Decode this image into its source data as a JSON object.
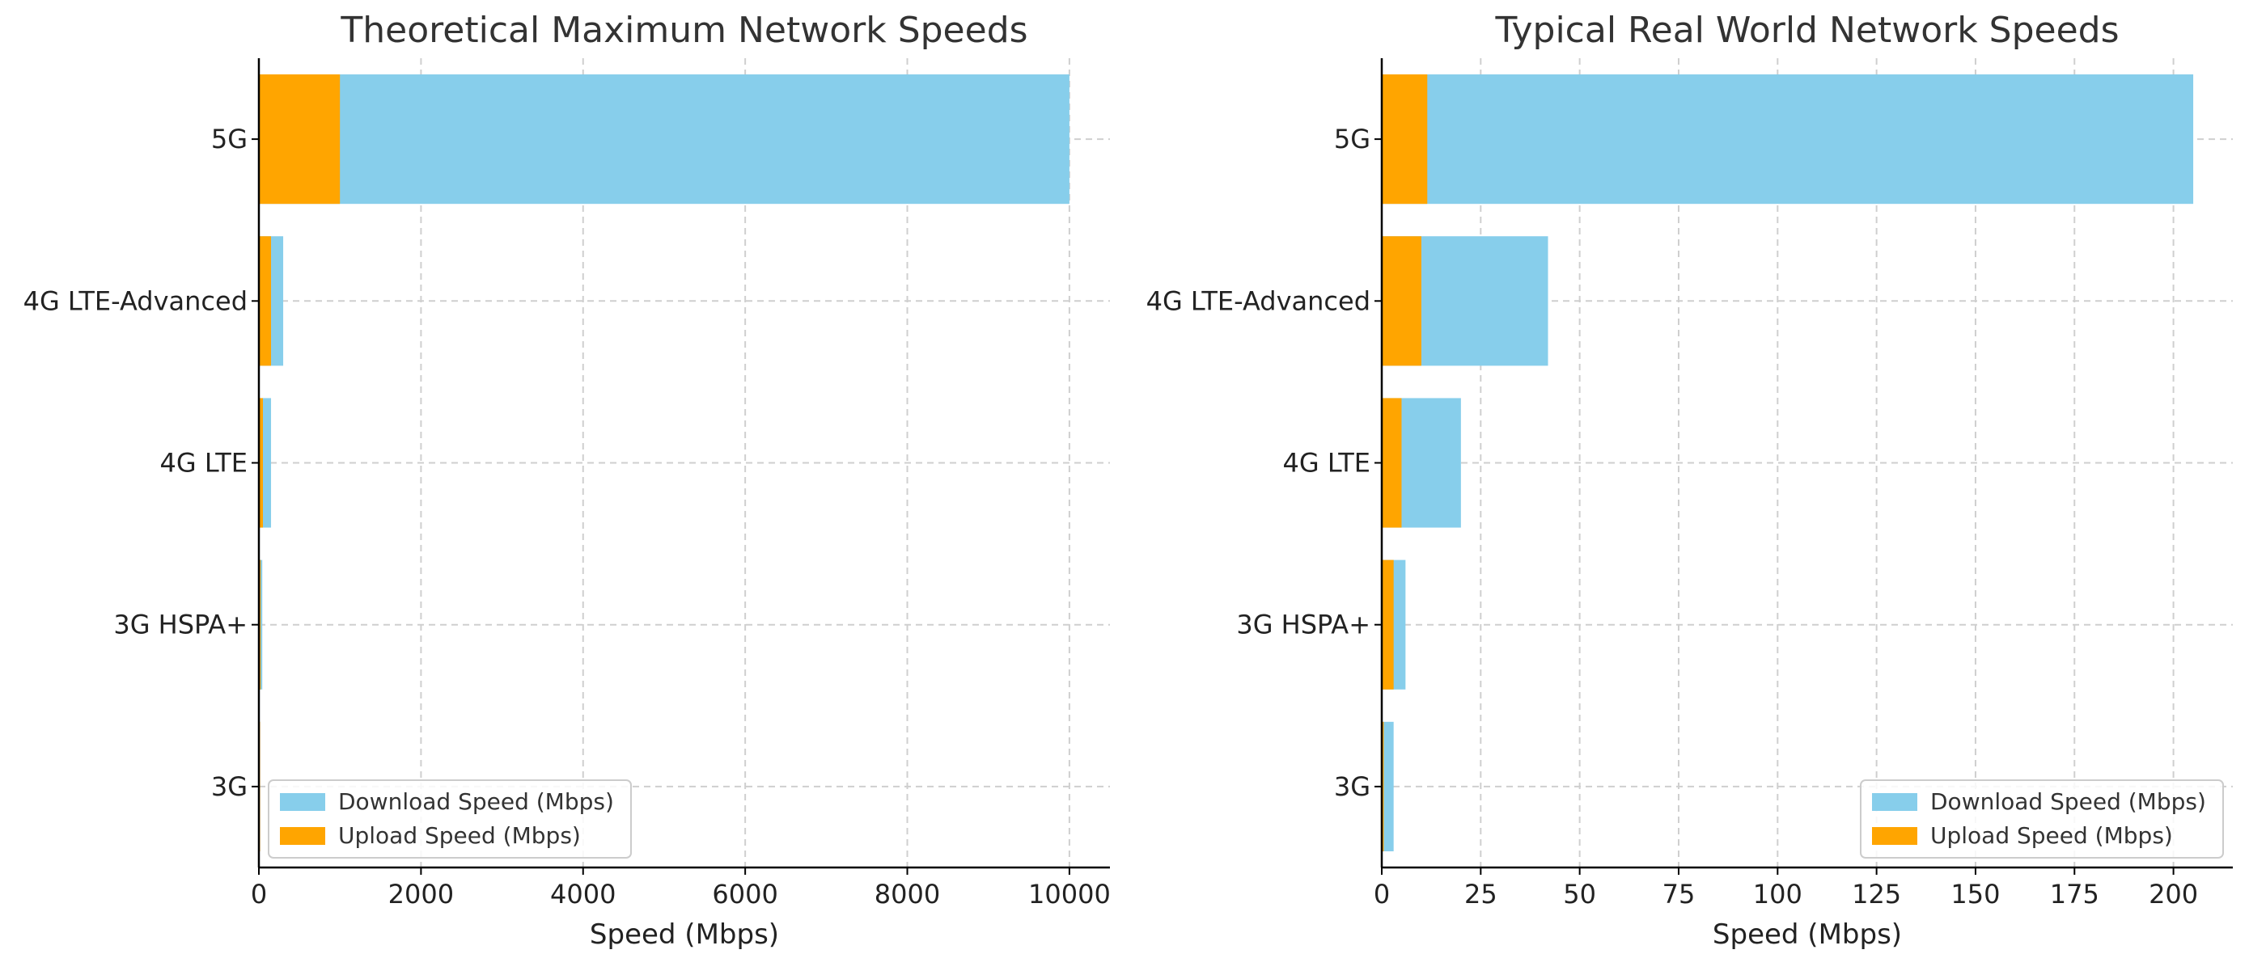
{
  "colors": {
    "download": "#87CEEB",
    "upload": "#FFA500"
  },
  "chart_data": [
    {
      "type": "bar",
      "orientation": "horizontal",
      "stacked": "overlay",
      "title": "Theoretical Maximum Network Speeds",
      "xlabel": "Speed (Mbps)",
      "ylabel": "",
      "categories": [
        "3G",
        "3G HSPA+",
        "4G LTE",
        "4G LTE-Advanced",
        "5G"
      ],
      "series": [
        {
          "name": "Download Speed (Mbps)",
          "color": "#87CEEB",
          "values": [
            2,
            42,
            150,
            300,
            10000
          ]
        },
        {
          "name": "Upload Speed (Mbps)",
          "color": "#FFA500",
          "values": [
            0.4,
            22,
            50,
            150,
            1000
          ]
        }
      ],
      "xlim": [
        0,
        10500
      ],
      "xticks": [
        0,
        2000,
        4000,
        6000,
        8000,
        10000
      ],
      "xtick_labels": [
        "0",
        "2000",
        "4000",
        "6000",
        "8000",
        "10000"
      ],
      "grid": true,
      "legend_position": "lower-left"
    },
    {
      "type": "bar",
      "orientation": "horizontal",
      "stacked": "overlay",
      "title": "Typical Real World Network Speeds",
      "xlabel": "Speed (Mbps)",
      "ylabel": "",
      "categories": [
        "3G",
        "3G HSPA+",
        "4G LTE",
        "4G LTE-Advanced",
        "5G"
      ],
      "series": [
        {
          "name": "Download Speed (Mbps)",
          "color": "#87CEEB",
          "values": [
            3,
            6,
            20,
            42,
            205
          ]
        },
        {
          "name": "Upload Speed (Mbps)",
          "color": "#FFA500",
          "values": [
            0.5,
            3,
            5,
            10,
            11.5
          ]
        }
      ],
      "xlim": [
        0,
        215
      ],
      "xticks": [
        0,
        25,
        50,
        75,
        100,
        125,
        150,
        175,
        200
      ],
      "xtick_labels": [
        "0",
        "25",
        "50",
        "75",
        "100",
        "125",
        "150",
        "175",
        "200"
      ],
      "grid": true,
      "legend_position": "lower-right"
    }
  ]
}
